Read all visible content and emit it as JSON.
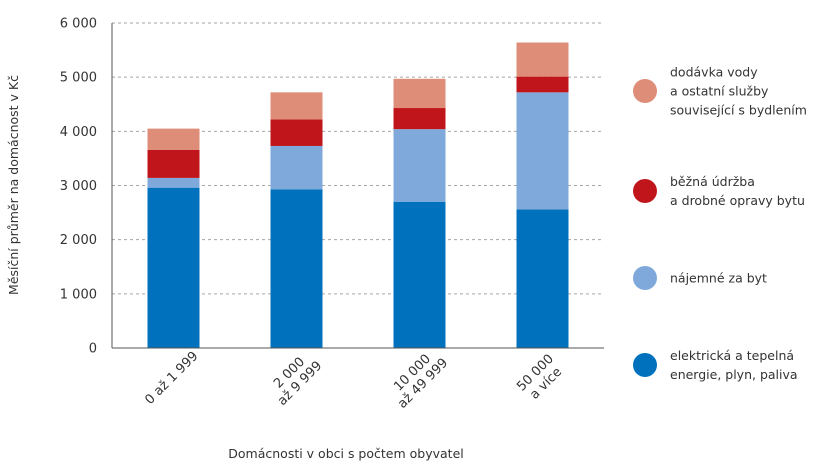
{
  "chart_data": {
    "type": "bar",
    "stacked": true,
    "xlabel": "Domácnosti v obci s počtem obyvatel",
    "ylabel": "Měsíční průměr na domácnost v Kč",
    "ylim": [
      0,
      6000
    ],
    "yticks": [
      0,
      1000,
      2000,
      3000,
      4000,
      5000,
      6000
    ],
    "ytick_labels": [
      "0",
      "1 000",
      "2 000",
      "3 000",
      "4 000",
      "5 000",
      "6 000"
    ],
    "grid": "horizontal dashed",
    "legend_position": "right",
    "categories": [
      [
        "0 až 1 999"
      ],
      [
        "2 000",
        "až 9 999"
      ],
      [
        "10 000",
        "až 49 999"
      ],
      [
        "50 000",
        "a více"
      ]
    ],
    "series": [
      {
        "name": [
          "elektrická a tepelná",
          "energie, plyn, paliva"
        ],
        "color": "#0071bc",
        "values": [
          2960,
          2930,
          2700,
          2560
        ]
      },
      {
        "name": [
          " nájemné za byt"
        ],
        "color": "#7fa9db",
        "values": [
          180,
          800,
          1340,
          2160
        ]
      },
      {
        "name": [
          "běžná údržba",
          "a drobné opravy bytu"
        ],
        "color": "#c0161b",
        "values": [
          520,
          490,
          390,
          290
        ]
      },
      {
        "name": [
          "dodávka vody",
          "a ostatní služby",
          "související s bydlením"
        ],
        "color": "#de8d78",
        "values": [
          390,
          500,
          540,
          630
        ]
      }
    ]
  }
}
